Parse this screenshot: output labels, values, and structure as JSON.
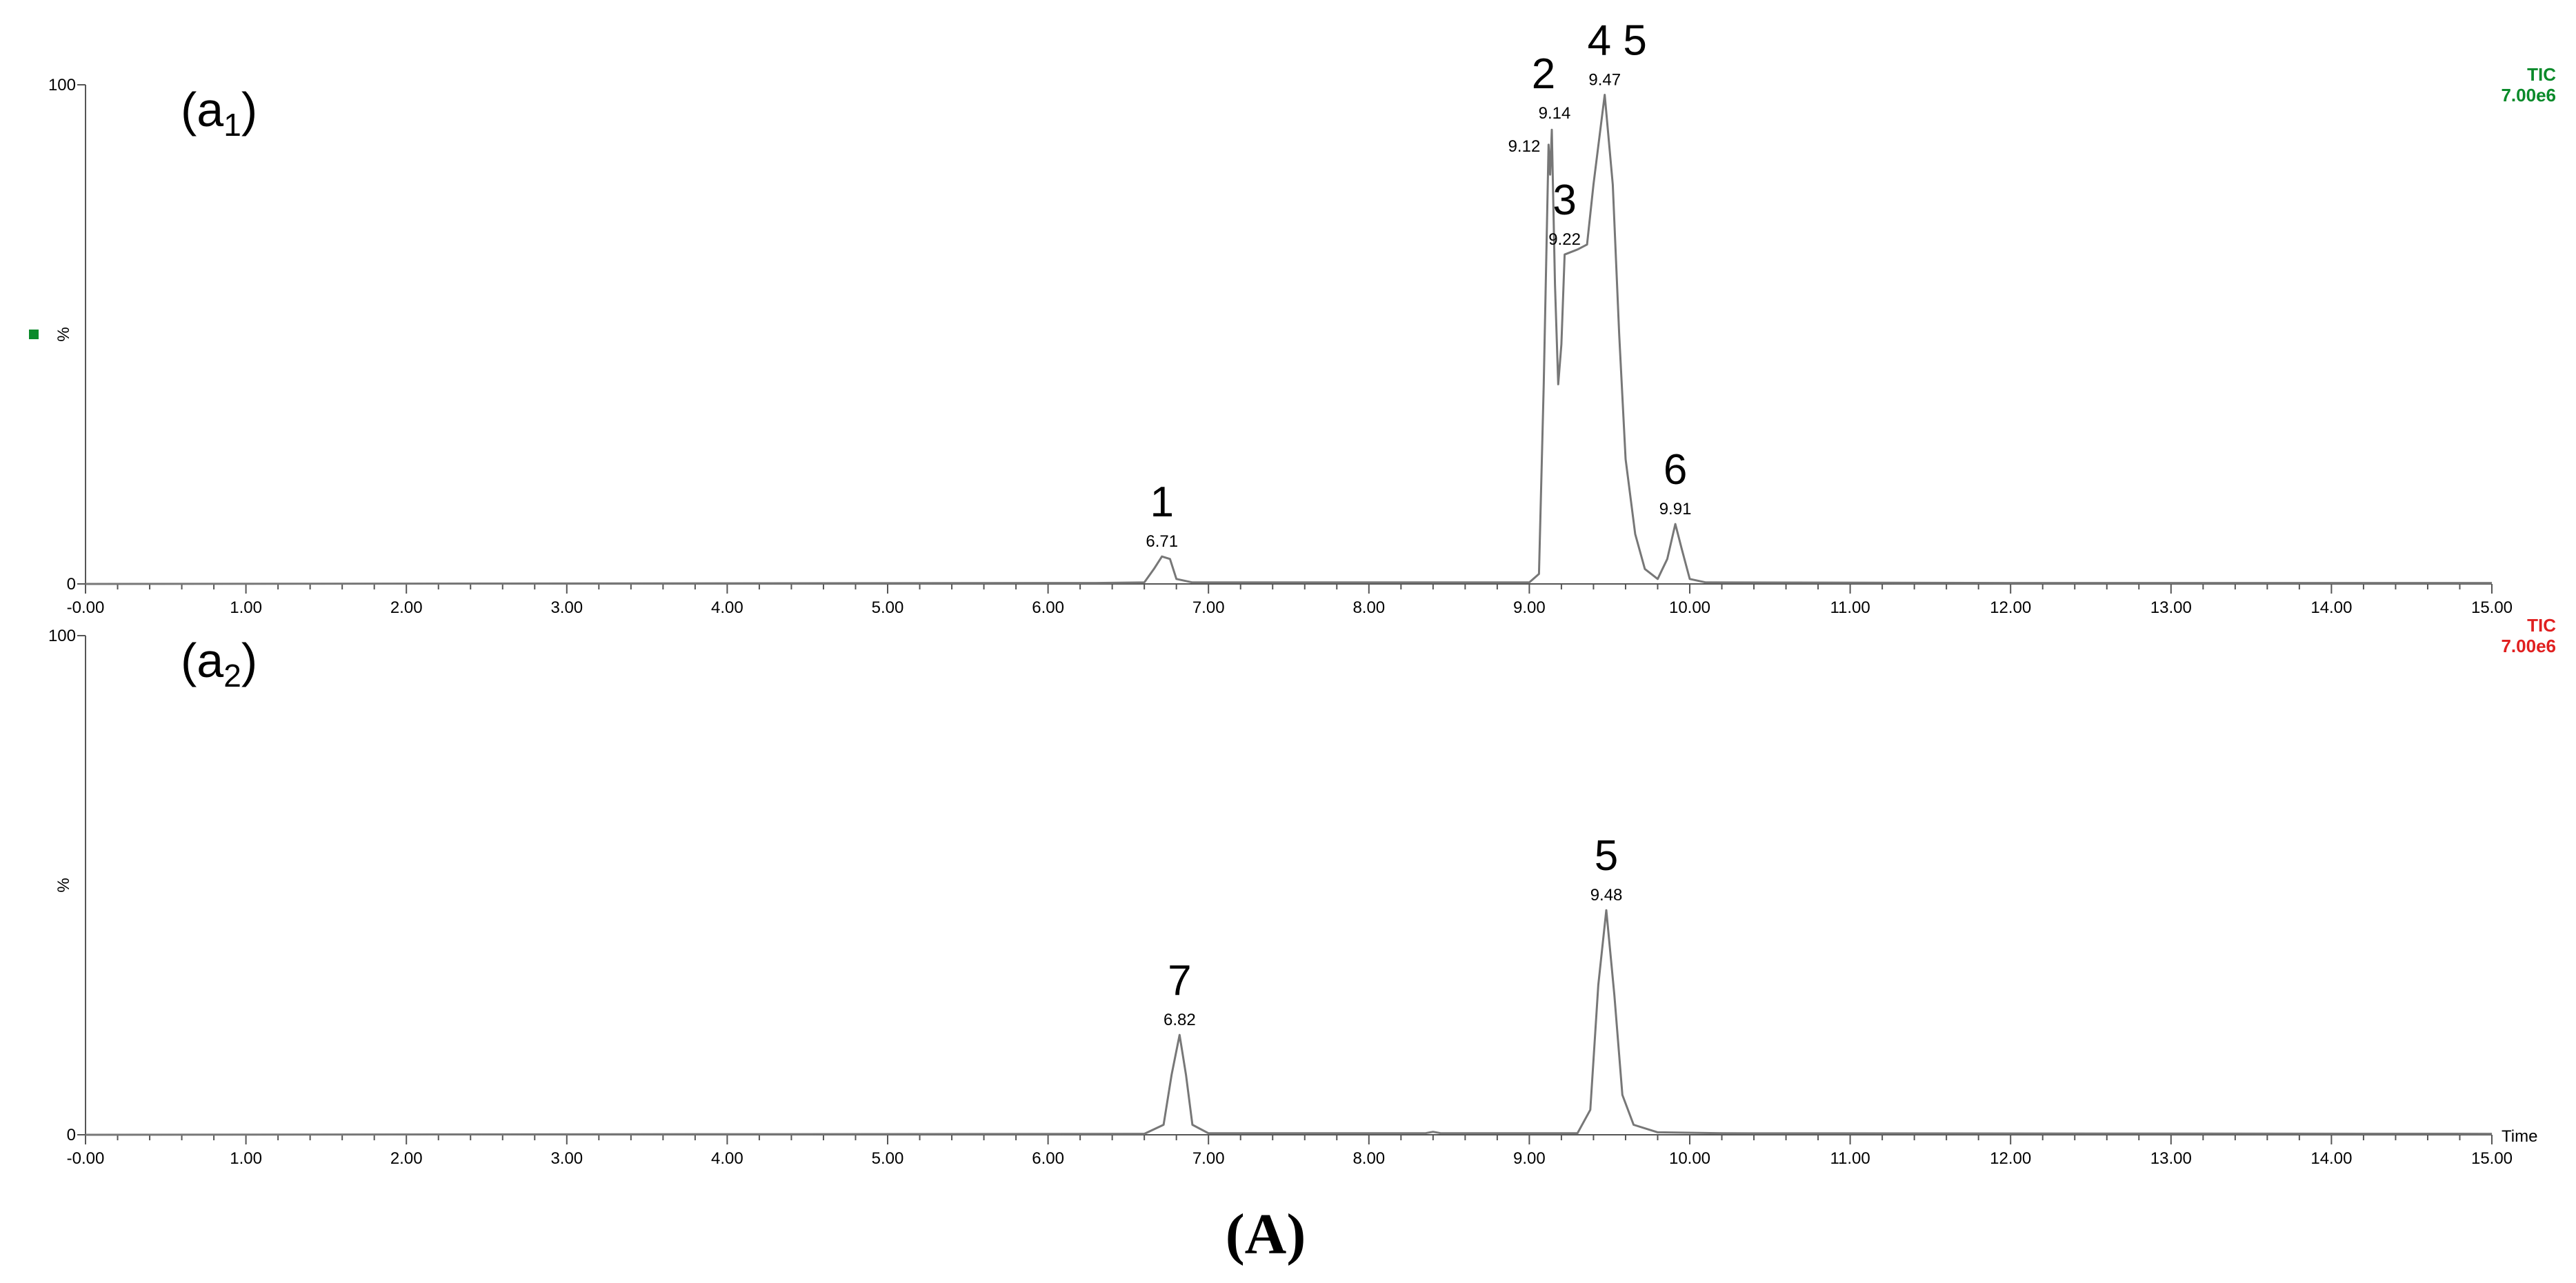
{
  "figure_caption": "(A)",
  "chart_data": [
    {
      "type": "line",
      "panel_label": "(a",
      "panel_label_sub": "1",
      "panel_label_close": ")",
      "x_unit_label": "",
      "y_axis_label": "%",
      "y_ticks": [
        "100",
        "0"
      ],
      "x_ticks": [
        "-0.00",
        "1.00",
        "2.00",
        "3.00",
        "4.00",
        "5.00",
        "6.00",
        "7.00",
        "8.00",
        "9.00",
        "10.00",
        "11.00",
        "12.00",
        "13.00",
        "14.00",
        "15.00"
      ],
      "xlim": [
        0,
        15
      ],
      "ylim": [
        0,
        100
      ],
      "trace_name": "TIC",
      "scale": "7.00e6",
      "trace_color": "#0a8a2a",
      "marker_color": "#0a8a2a",
      "peaks": [
        {
          "rt": 6.71,
          "rel": 5.5,
          "rt_label": "6.71",
          "num": "1"
        },
        {
          "rt": 9.12,
          "rel": 88,
          "rt_label": "9.12",
          "num": ""
        },
        {
          "rt": 9.14,
          "rel": 91,
          "rt_label": "9.14",
          "num": "2"
        },
        {
          "rt": 9.22,
          "rel": 66,
          "rt_label": "9.22",
          "num": "3"
        },
        {
          "rt": 9.47,
          "rel": 98,
          "rt_label": "9.47",
          "num": "4  5"
        },
        {
          "rt": 9.91,
          "rel": 12,
          "rt_label": "9.91",
          "num": "6"
        }
      ],
      "profile": [
        [
          0,
          0
        ],
        [
          6.3,
          0.2
        ],
        [
          6.6,
          0.3
        ],
        [
          6.66,
          3
        ],
        [
          6.71,
          5.5
        ],
        [
          6.76,
          5
        ],
        [
          6.8,
          1
        ],
        [
          6.9,
          0.3
        ],
        [
          8.4,
          0.3
        ],
        [
          9.0,
          0.3
        ],
        [
          9.06,
          2
        ],
        [
          9.09,
          40
        ],
        [
          9.12,
          88
        ],
        [
          9.13,
          82
        ],
        [
          9.14,
          91
        ],
        [
          9.16,
          60
        ],
        [
          9.18,
          40
        ],
        [
          9.2,
          48
        ],
        [
          9.22,
          66
        ],
        [
          9.3,
          67
        ],
        [
          9.36,
          68
        ],
        [
          9.4,
          80
        ],
        [
          9.47,
          98
        ],
        [
          9.52,
          80
        ],
        [
          9.56,
          50
        ],
        [
          9.6,
          25
        ],
        [
          9.66,
          10
        ],
        [
          9.72,
          3
        ],
        [
          9.8,
          1
        ],
        [
          9.86,
          5
        ],
        [
          9.91,
          12
        ],
        [
          9.95,
          7
        ],
        [
          10.0,
          1
        ],
        [
          10.1,
          0.3
        ],
        [
          12,
          0.2
        ],
        [
          15,
          0.2
        ]
      ]
    },
    {
      "type": "line",
      "panel_label": "(a",
      "panel_label_sub": "2",
      "panel_label_close": ")",
      "x_unit_label": "Time",
      "y_axis_label": "%",
      "y_ticks": [
        "100",
        "0"
      ],
      "x_ticks": [
        "-0.00",
        "1.00",
        "2.00",
        "3.00",
        "4.00",
        "5.00",
        "6.00",
        "7.00",
        "8.00",
        "9.00",
        "10.00",
        "11.00",
        "12.00",
        "13.00",
        "14.00",
        "15.00"
      ],
      "xlim": [
        0,
        15
      ],
      "ylim": [
        0,
        100
      ],
      "trace_name": "TIC",
      "scale": "7.00e6",
      "trace_color": "#e02020",
      "marker_color": "",
      "peaks": [
        {
          "rt": 6.82,
          "rel": 20,
          "rt_label": "6.82",
          "num": "7"
        },
        {
          "rt": 9.48,
          "rel": 45,
          "rt_label": "9.48",
          "num": "5"
        }
      ],
      "profile": [
        [
          0,
          0
        ],
        [
          6.6,
          0.2
        ],
        [
          6.72,
          2
        ],
        [
          6.77,
          12
        ],
        [
          6.82,
          20
        ],
        [
          6.86,
          12
        ],
        [
          6.9,
          2
        ],
        [
          7.0,
          0.3
        ],
        [
          8.35,
          0.3
        ],
        [
          8.4,
          0.6
        ],
        [
          8.45,
          0.3
        ],
        [
          9.3,
          0.3
        ],
        [
          9.38,
          5
        ],
        [
          9.43,
          30
        ],
        [
          9.48,
          45
        ],
        [
          9.53,
          28
        ],
        [
          9.58,
          8
        ],
        [
          9.65,
          2
        ],
        [
          9.8,
          0.5
        ],
        [
          10.2,
          0.3
        ],
        [
          15,
          0.2
        ]
      ]
    }
  ]
}
